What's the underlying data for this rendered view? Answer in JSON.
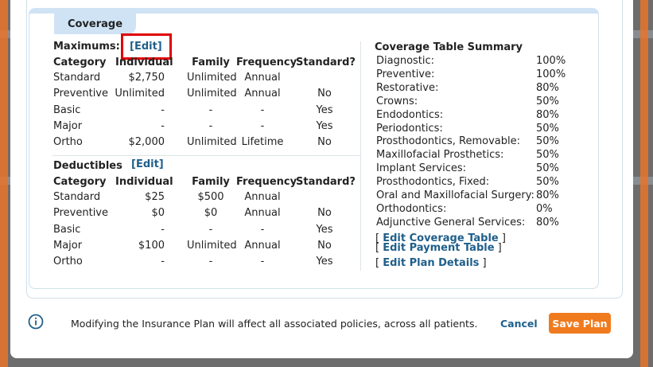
{
  "coverage_tab": "Coverage",
  "maximums": {
    "label": "Maximums:",
    "edit": "[Edit]",
    "headers": [
      "Category",
      "Individual",
      "Family",
      "Frequency",
      "Standard?"
    ],
    "rows": [
      [
        "Standard",
        "$2,750",
        "Unlimited",
        "Annual",
        ""
      ],
      [
        "Preventive",
        "Unlimited",
        "Unlimited",
        "Annual",
        "No"
      ],
      [
        "Basic",
        "-",
        "-",
        "-",
        "Yes"
      ],
      [
        "Major",
        "-",
        "-",
        "-",
        "Yes"
      ],
      [
        "Ortho",
        "$2,000",
        "Unlimited",
        "Lifetime",
        "No"
      ]
    ]
  },
  "deductibles": {
    "label": "Deductibles",
    "edit": "[Edit]",
    "headers": [
      "Category",
      "Individual",
      "Family",
      "Frequency",
      "Standard?"
    ],
    "rows": [
      [
        "Standard",
        "$25",
        "$500",
        "Annual",
        ""
      ],
      [
        "Preventive",
        "$0",
        "$0",
        "Annual",
        "No"
      ],
      [
        "Basic",
        "-",
        "-",
        "-",
        "Yes"
      ],
      [
        "Major",
        "$100",
        "Unlimited",
        "Annual",
        "No"
      ],
      [
        "Ortho",
        "-",
        "-",
        "-",
        "Yes"
      ]
    ]
  },
  "summary": {
    "title": "Coverage Table Summary",
    "rows": [
      [
        "Diagnostic:",
        "100%"
      ],
      [
        "Preventive:",
        "100%"
      ],
      [
        "Restorative:",
        "80%"
      ],
      [
        "Crowns:",
        "50%"
      ],
      [
        "Endodontics:",
        "80%"
      ],
      [
        "Periodontics:",
        "50%"
      ],
      [
        "Prosthodontics, Removable:",
        "50%"
      ],
      [
        "Maxillofacial Prosthetics:",
        "50%"
      ],
      [
        "Implant Services:",
        "50%"
      ],
      [
        "Prosthodontics, Fixed:",
        "50%"
      ],
      [
        "Oral and Maxillofacial Surgery:",
        "80%"
      ],
      [
        "Orthodontics:",
        "0%"
      ],
      [
        "Adjunctive General Services:",
        "80%"
      ]
    ],
    "links": {
      "edit_coverage_table": "Edit Coverage Table",
      "edit_payment_table": "Edit Payment Table",
      "edit_plan_details": "Edit Plan Details"
    }
  },
  "footer": {
    "message": "Modifying the Insurance Plan will affect all associated policies, across all patients.",
    "cancel": "Cancel",
    "save": "Save Plan",
    "info_icon": "info-circle-icon"
  },
  "colors": {
    "accent_blue": "#1f5f8b",
    "save_orange": "#f07b1e",
    "tab_blue": "#cfe3f5",
    "highlight_red": "#e00000"
  }
}
